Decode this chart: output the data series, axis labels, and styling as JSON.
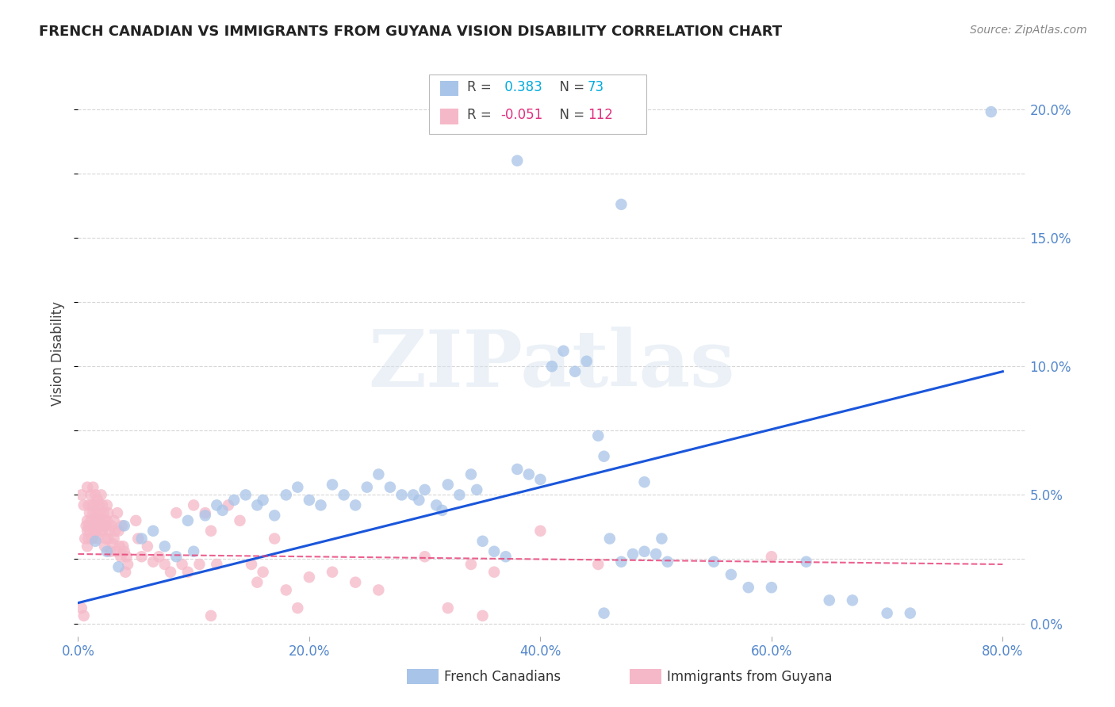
{
  "title": "FRENCH CANADIAN VS IMMIGRANTS FROM GUYANA VISION DISABILITY CORRELATION CHART",
  "source": "Source: ZipAtlas.com",
  "ylabel": "Vision Disability",
  "xlim": [
    0.0,
    0.82
  ],
  "ylim": [
    -0.005,
    0.215
  ],
  "yticks": [
    0.0,
    0.05,
    0.1,
    0.15,
    0.2
  ],
  "ytick_labels": [
    "0.0%",
    "5.0%",
    "10.0%",
    "15.0%",
    "20.0%"
  ],
  "xticks": [
    0.0,
    0.2,
    0.4,
    0.6,
    0.8
  ],
  "xtick_labels": [
    "0.0%",
    "20.0%",
    "40.0%",
    "60.0%",
    "80.0%"
  ],
  "watermark": "ZIPatlas",
  "blue_color": "#a8c4e8",
  "pink_color": "#f5b8c8",
  "blue_line_color": "#1a56db",
  "pink_line_color": "#e8457a",
  "blue_scatter": [
    [
      0.015,
      0.032
    ],
    [
      0.025,
      0.028
    ],
    [
      0.035,
      0.022
    ],
    [
      0.04,
      0.038
    ],
    [
      0.055,
      0.033
    ],
    [
      0.065,
      0.036
    ],
    [
      0.075,
      0.03
    ],
    [
      0.085,
      0.026
    ],
    [
      0.095,
      0.04
    ],
    [
      0.1,
      0.028
    ],
    [
      0.11,
      0.042
    ],
    [
      0.12,
      0.046
    ],
    [
      0.125,
      0.044
    ],
    [
      0.135,
      0.048
    ],
    [
      0.145,
      0.05
    ],
    [
      0.155,
      0.046
    ],
    [
      0.16,
      0.048
    ],
    [
      0.17,
      0.042
    ],
    [
      0.18,
      0.05
    ],
    [
      0.19,
      0.053
    ],
    [
      0.2,
      0.048
    ],
    [
      0.21,
      0.046
    ],
    [
      0.22,
      0.054
    ],
    [
      0.23,
      0.05
    ],
    [
      0.24,
      0.046
    ],
    [
      0.25,
      0.053
    ],
    [
      0.26,
      0.058
    ],
    [
      0.27,
      0.053
    ],
    [
      0.28,
      0.05
    ],
    [
      0.29,
      0.05
    ],
    [
      0.295,
      0.048
    ],
    [
      0.3,
      0.052
    ],
    [
      0.31,
      0.046
    ],
    [
      0.315,
      0.044
    ],
    [
      0.32,
      0.054
    ],
    [
      0.33,
      0.05
    ],
    [
      0.34,
      0.058
    ],
    [
      0.345,
      0.052
    ],
    [
      0.35,
      0.032
    ],
    [
      0.36,
      0.028
    ],
    [
      0.37,
      0.026
    ],
    [
      0.38,
      0.06
    ],
    [
      0.39,
      0.058
    ],
    [
      0.4,
      0.056
    ],
    [
      0.41,
      0.1
    ],
    [
      0.42,
      0.106
    ],
    [
      0.43,
      0.098
    ],
    [
      0.44,
      0.102
    ],
    [
      0.38,
      0.18
    ],
    [
      0.45,
      0.073
    ],
    [
      0.455,
      0.065
    ],
    [
      0.46,
      0.033
    ],
    [
      0.47,
      0.024
    ],
    [
      0.48,
      0.027
    ],
    [
      0.49,
      0.055
    ],
    [
      0.49,
      0.028
    ],
    [
      0.5,
      0.027
    ],
    [
      0.505,
      0.033
    ],
    [
      0.51,
      0.024
    ],
    [
      0.455,
      0.004
    ],
    [
      0.47,
      0.163
    ],
    [
      0.55,
      0.024
    ],
    [
      0.565,
      0.019
    ],
    [
      0.58,
      0.014
    ],
    [
      0.6,
      0.014
    ],
    [
      0.63,
      0.024
    ],
    [
      0.65,
      0.009
    ],
    [
      0.67,
      0.009
    ],
    [
      0.7,
      0.004
    ],
    [
      0.72,
      0.004
    ],
    [
      0.79,
      0.199
    ]
  ],
  "pink_scatter": [
    [
      0.003,
      0.05
    ],
    [
      0.005,
      0.046
    ],
    [
      0.006,
      0.033
    ],
    [
      0.007,
      0.038
    ],
    [
      0.008,
      0.053
    ],
    [
      0.008,
      0.04
    ],
    [
      0.008,
      0.036
    ],
    [
      0.008,
      0.03
    ],
    [
      0.009,
      0.046
    ],
    [
      0.009,
      0.038
    ],
    [
      0.009,
      0.033
    ],
    [
      0.01,
      0.043
    ],
    [
      0.01,
      0.036
    ],
    [
      0.011,
      0.05
    ],
    [
      0.011,
      0.04
    ],
    [
      0.012,
      0.046
    ],
    [
      0.012,
      0.038
    ],
    [
      0.012,
      0.033
    ],
    [
      0.013,
      0.053
    ],
    [
      0.013,
      0.043
    ],
    [
      0.014,
      0.046
    ],
    [
      0.014,
      0.036
    ],
    [
      0.015,
      0.05
    ],
    [
      0.015,
      0.04
    ],
    [
      0.016,
      0.043
    ],
    [
      0.016,
      0.036
    ],
    [
      0.017,
      0.048
    ],
    [
      0.017,
      0.04
    ],
    [
      0.017,
      0.033
    ],
    [
      0.018,
      0.046
    ],
    [
      0.018,
      0.038
    ],
    [
      0.019,
      0.043
    ],
    [
      0.019,
      0.036
    ],
    [
      0.02,
      0.05
    ],
    [
      0.02,
      0.04
    ],
    [
      0.021,
      0.046
    ],
    [
      0.021,
      0.036
    ],
    [
      0.022,
      0.043
    ],
    [
      0.022,
      0.038
    ],
    [
      0.023,
      0.04
    ],
    [
      0.023,
      0.03
    ],
    [
      0.024,
      0.038
    ],
    [
      0.024,
      0.033
    ],
    [
      0.025,
      0.046
    ],
    [
      0.025,
      0.04
    ],
    [
      0.026,
      0.043
    ],
    [
      0.026,
      0.033
    ],
    [
      0.027,
      0.036
    ],
    [
      0.028,
      0.028
    ],
    [
      0.029,
      0.038
    ],
    [
      0.03,
      0.031
    ],
    [
      0.031,
      0.04
    ],
    [
      0.031,
      0.033
    ],
    [
      0.032,
      0.036
    ],
    [
      0.033,
      0.028
    ],
    [
      0.034,
      0.043
    ],
    [
      0.035,
      0.036
    ],
    [
      0.036,
      0.03
    ],
    [
      0.037,
      0.026
    ],
    [
      0.038,
      0.038
    ],
    [
      0.039,
      0.03
    ],
    [
      0.04,
      0.028
    ],
    [
      0.041,
      0.02
    ],
    [
      0.042,
      0.026
    ],
    [
      0.043,
      0.023
    ],
    [
      0.05,
      0.04
    ],
    [
      0.052,
      0.033
    ],
    [
      0.055,
      0.026
    ],
    [
      0.06,
      0.03
    ],
    [
      0.065,
      0.024
    ],
    [
      0.07,
      0.026
    ],
    [
      0.075,
      0.023
    ],
    [
      0.08,
      0.02
    ],
    [
      0.085,
      0.043
    ],
    [
      0.09,
      0.023
    ],
    [
      0.095,
      0.02
    ],
    [
      0.1,
      0.046
    ],
    [
      0.105,
      0.023
    ],
    [
      0.11,
      0.043
    ],
    [
      0.115,
      0.036
    ],
    [
      0.12,
      0.023
    ],
    [
      0.13,
      0.046
    ],
    [
      0.14,
      0.04
    ],
    [
      0.15,
      0.023
    ],
    [
      0.155,
      0.016
    ],
    [
      0.16,
      0.02
    ],
    [
      0.17,
      0.033
    ],
    [
      0.18,
      0.013
    ],
    [
      0.19,
      0.006
    ],
    [
      0.2,
      0.018
    ],
    [
      0.22,
      0.02
    ],
    [
      0.24,
      0.016
    ],
    [
      0.26,
      0.013
    ],
    [
      0.3,
      0.026
    ],
    [
      0.32,
      0.006
    ],
    [
      0.34,
      0.023
    ],
    [
      0.36,
      0.02
    ],
    [
      0.4,
      0.036
    ],
    [
      0.45,
      0.023
    ],
    [
      0.6,
      0.026
    ],
    [
      0.003,
      0.006
    ],
    [
      0.005,
      0.003
    ],
    [
      0.115,
      0.003
    ],
    [
      0.35,
      0.003
    ]
  ],
  "blue_trend_x": [
    0.0,
    0.8
  ],
  "blue_trend_y": [
    0.008,
    0.098
  ],
  "pink_trend_x": [
    0.0,
    0.8
  ],
  "pink_trend_y": [
    0.027,
    0.023
  ],
  "grid_color": "#cccccc",
  "background_color": "#ffffff",
  "tick_color": "#5588cc",
  "title_fontsize": 13,
  "axis_label_fontsize": 12,
  "tick_fontsize": 12
}
